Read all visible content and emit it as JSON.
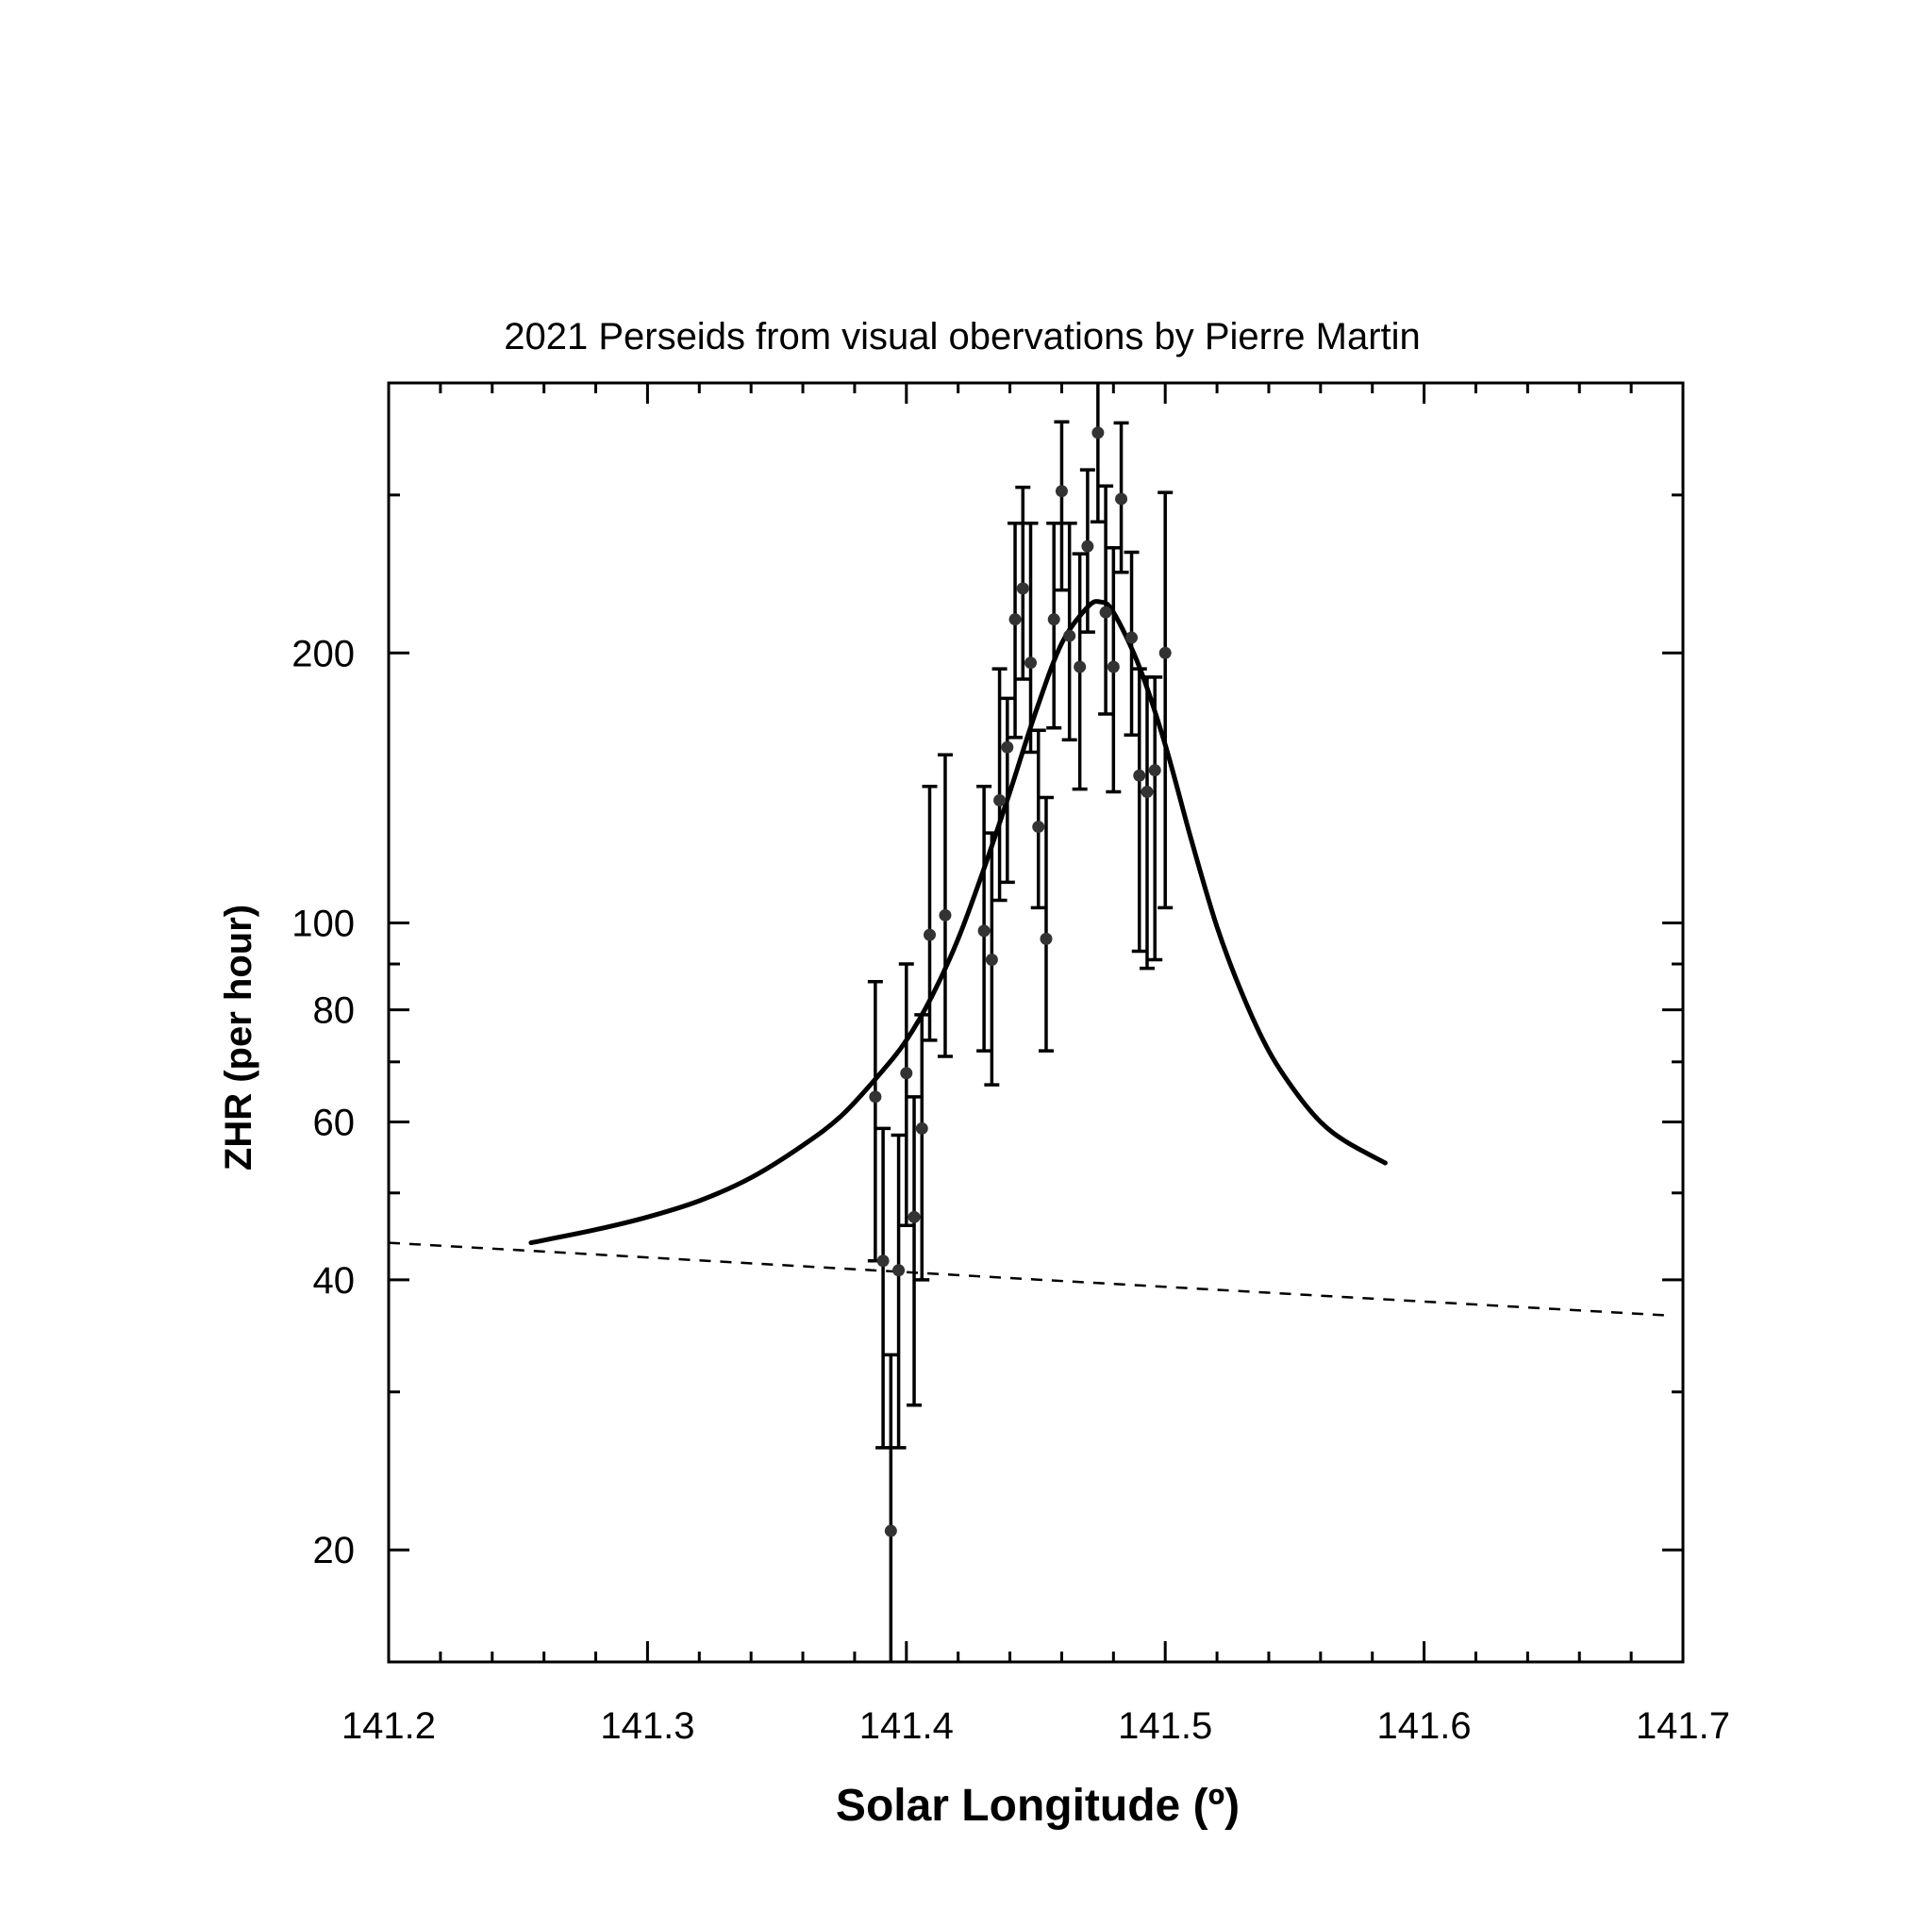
{
  "chart_data": {
    "type": "scatter",
    "title": "2021 Perseids from visual obervations by Pierre Martin",
    "xlabel": "Solar Longitude (º)",
    "ylabel": "ZHR (per hour)",
    "xlim": [
      141.2,
      141.7
    ],
    "ylim": [
      15,
      400
    ],
    "yscale": "log",
    "grid": false,
    "x_ticks": [
      141.2,
      141.3,
      141.4,
      141.5,
      141.6,
      141.7
    ],
    "x_tick_labels": [
      "141.2",
      "141.3",
      "141.4",
      "141.5",
      "141.6",
      "141.7"
    ],
    "x_minor_ticks": [
      141.22,
      141.24,
      141.26,
      141.28,
      141.32,
      141.34,
      141.36,
      141.38,
      141.42,
      141.44,
      141.46,
      141.48,
      141.52,
      141.54,
      141.56,
      141.58,
      141.62,
      141.64,
      141.66,
      141.68
    ],
    "y_ticks": [
      20,
      40,
      60,
      80,
      100,
      200
    ],
    "y_tick_labels": [
      "20",
      "40",
      "60",
      "80",
      "100",
      "200"
    ],
    "y_minor_ticks": [
      30,
      50,
      70,
      90,
      300
    ],
    "series": [
      {
        "kind": "observations",
        "x": [
          141.388,
          141.391,
          141.394,
          141.397,
          141.4,
          141.403,
          141.406,
          141.409,
          141.415,
          141.43,
          141.433,
          141.436,
          141.439,
          141.442,
          141.445,
          141.448,
          141.451,
          141.454,
          141.457,
          141.46,
          141.463,
          141.467,
          141.47,
          141.474,
          141.477,
          141.48,
          141.483,
          141.487,
          141.49,
          141.493,
          141.496,
          141.5
        ],
        "y": [
          64,
          42,
          21,
          41,
          68,
          47,
          59,
          97,
          102,
          98,
          91,
          137,
          157,
          218,
          236,
          195,
          128,
          96,
          218,
          303,
          209,
          193,
          263,
          352,
          222,
          193,
          297,
          208,
          146,
          140,
          148,
          200
        ],
        "yerr_low": [
          42,
          26,
          14,
          26,
          46,
          29,
          40,
          74,
          71,
          72,
          66,
          106,
          111,
          161,
          187,
          155,
          104,
          72,
          165,
          235,
          160,
          141,
          211,
          280,
          171,
          140,
          246,
          162,
          93,
          89,
          91,
          104
        ],
        "yerr_high": [
          86,
          59,
          33,
          58,
          90,
          64,
          79,
          142,
          154,
          142,
          126,
          192,
          178,
          279,
          306,
          279,
          164,
          138,
          279,
          362,
          279,
          258,
          320,
          413,
          307,
          262,
          361,
          259,
          192,
          188,
          188,
          302
        ]
      },
      {
        "kind": "model-curve",
        "x": [
          141.255,
          141.28,
          141.3,
          141.32,
          141.34,
          141.36,
          141.375,
          141.39,
          141.4,
          141.41,
          141.42,
          141.43,
          141.44,
          141.45,
          141.46,
          141.47,
          141.475,
          141.48,
          141.49,
          141.5,
          141.51,
          141.52,
          141.53,
          141.54,
          141.55,
          141.56,
          141.57,
          141.585
        ],
        "y": [
          44,
          45.5,
          47,
          49,
          52,
          56.5,
          61,
          68,
          74,
          83,
          96,
          115,
          140,
          172,
          205,
          225,
          228,
          222,
          193,
          158,
          124,
          99,
          83,
          72,
          65,
          60,
          57,
          54
        ]
      },
      {
        "kind": "background-line",
        "style": "dashed",
        "x": [
          141.2,
          141.695
        ],
        "y": [
          44,
          36.5
        ]
      }
    ]
  }
}
